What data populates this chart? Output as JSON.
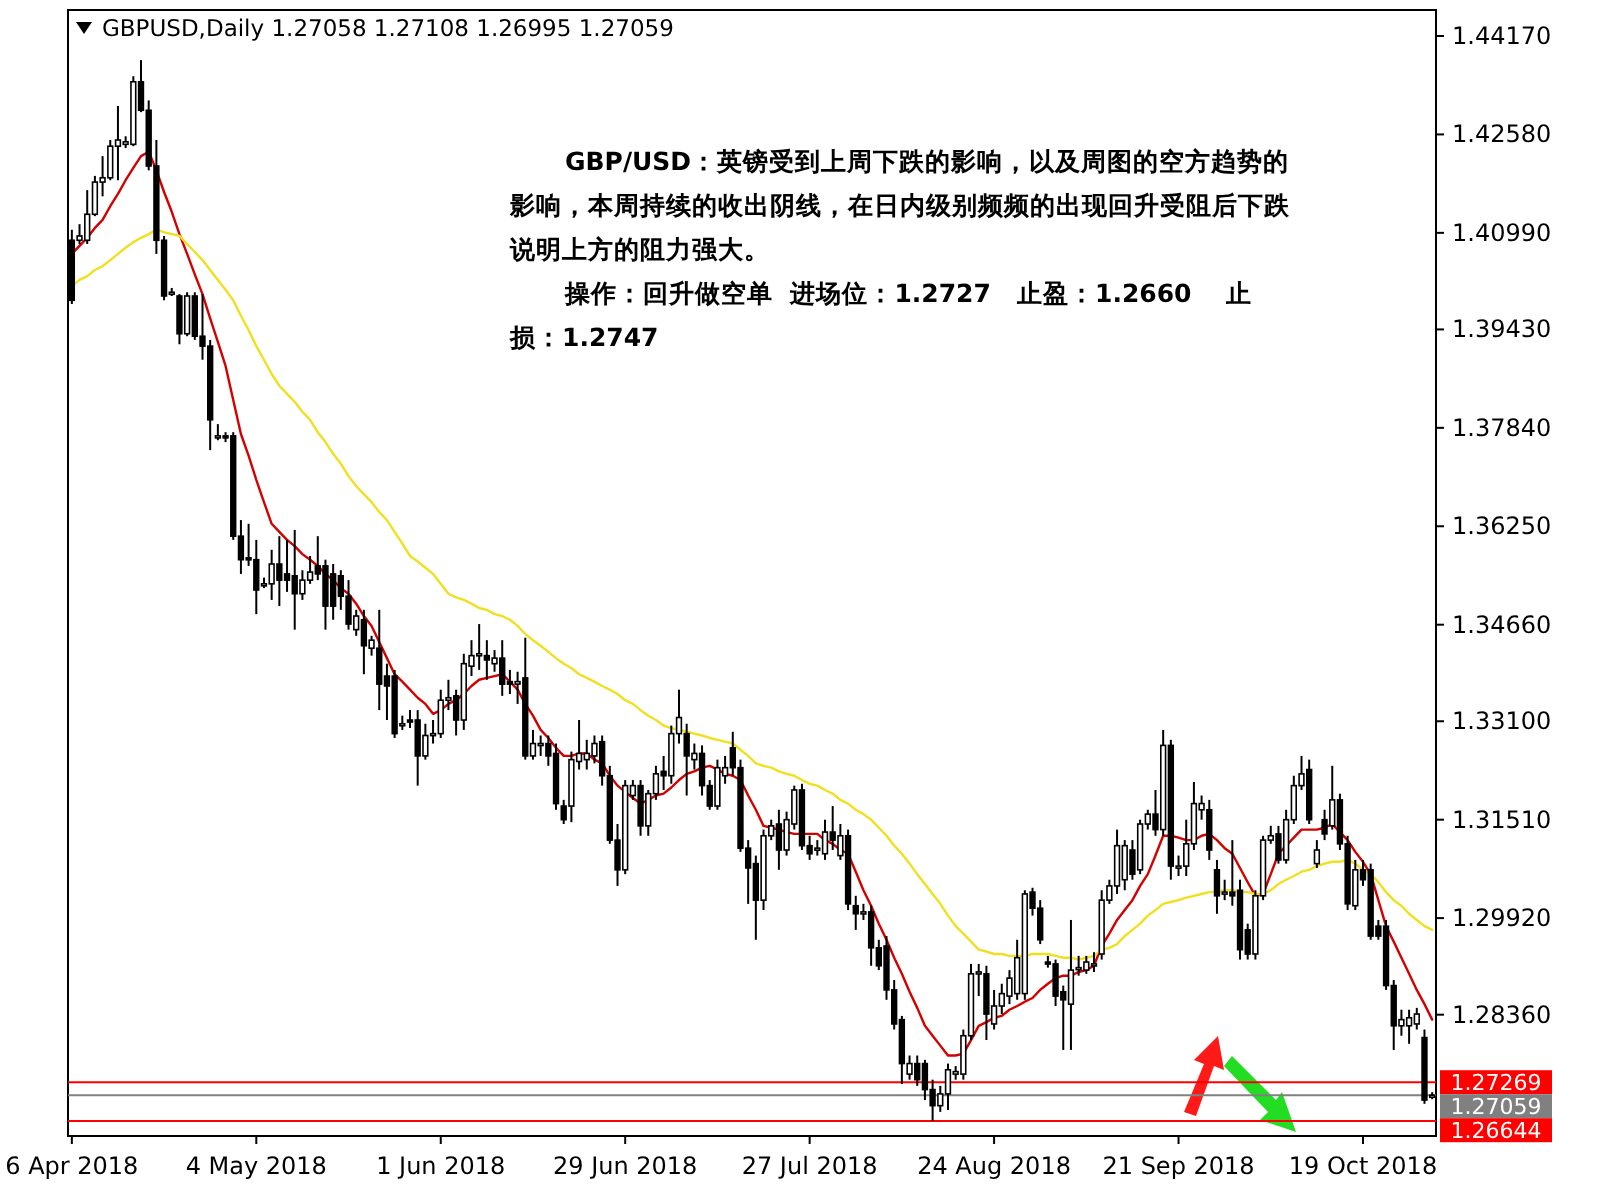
{
  "chart_data": {
    "type": "candlestick",
    "title": "GBPUSD,Daily 1.27058 1.27108 1.26995 1.27059",
    "color": "#000000",
    "categories": [
      "6 Apr 2018",
      null,
      null,
      null,
      null,
      null,
      null,
      null,
      null,
      null,
      null,
      null,
      null,
      null,
      null,
      null,
      null,
      null,
      null,
      null,
      null,
      null,
      null,
      null,
      "4 May 2018",
      null,
      null,
      null,
      null,
      null,
      null,
      null,
      null,
      null,
      null,
      null,
      null,
      null,
      null,
      null,
      null,
      null,
      null,
      null,
      null,
      null,
      null,
      null,
      "1 Jun 2018",
      null,
      null,
      null,
      null,
      null,
      null,
      null,
      null,
      null,
      null,
      null,
      null,
      null,
      null,
      null,
      null,
      null,
      null,
      null,
      null,
      null,
      null,
      null,
      "29 Jun 2018",
      null,
      null,
      null,
      null,
      null,
      null,
      null,
      null,
      null,
      null,
      null,
      null,
      null,
      null,
      null,
      null,
      null,
      null,
      null,
      null,
      null,
      null,
      null,
      "27 Jul 2018",
      null,
      null,
      null,
      null,
      null,
      null,
      null,
      null,
      null,
      null,
      null,
      null,
      null,
      null,
      null,
      null,
      null,
      null,
      null,
      null,
      null,
      null,
      null,
      "24 Aug 2018",
      null,
      null,
      null,
      null,
      null,
      null,
      null,
      null,
      null,
      null,
      null,
      null,
      null,
      null,
      null,
      null,
      null,
      null,
      null,
      null,
      null,
      null,
      null,
      "21 Sep 2018",
      null,
      null,
      null,
      null,
      null,
      null,
      null,
      null,
      null,
      null,
      null,
      null,
      null,
      null,
      null,
      null,
      null,
      null,
      null,
      null,
      null,
      null,
      null,
      "19 Oct 2018",
      null,
      null,
      null,
      null,
      null,
      null,
      null,
      null,
      null
    ],
    "ohlc": [
      [
        1.4087,
        1.4104,
        1.3984,
        1.399
      ],
      [
        1.4087,
        1.4113,
        1.4081,
        1.4094
      ],
      [
        1.4087,
        1.4168,
        1.4081,
        1.4129
      ],
      [
        1.4129,
        1.4191,
        1.4126,
        1.4181
      ],
      [
        1.4181,
        1.4223,
        1.4158,
        1.4188
      ],
      [
        1.4188,
        1.4249,
        1.4184,
        1.4239
      ],
      [
        1.4239,
        1.4304,
        1.4184,
        1.4249
      ],
      [
        1.4242,
        1.4255,
        1.4236,
        1.4246
      ],
      [
        1.4242,
        1.4352,
        1.4239,
        1.4343
      ],
      [
        1.4343,
        1.4378,
        1.4294,
        1.4297
      ],
      [
        1.4297,
        1.4313,
        1.42,
        1.4207
      ],
      [
        1.4207,
        1.4249,
        1.4065,
        1.4087
      ],
      [
        1.4087,
        1.4094,
        1.399,
        1.3997
      ],
      [
        1.4003,
        1.401,
        1.3997,
        1.4003
      ],
      [
        1.3997,
        1.4,
        1.3919,
        1.3936
      ],
      [
        1.3936,
        1.4003,
        1.3932,
        1.3997
      ],
      [
        1.3997,
        1.4003,
        1.3926,
        1.3932
      ],
      [
        1.3932,
        1.4,
        1.3894,
        1.3916
      ],
      [
        1.3916,
        1.3926,
        1.3748,
        1.3797
      ],
      [
        1.3771,
        1.379,
        1.3764,
        1.3771
      ],
      [
        1.3771,
        1.3777,
        1.3761,
        1.3768
      ],
      [
        1.3771,
        1.3777,
        1.3603,
        1.3609
      ],
      [
        1.3609,
        1.3635,
        1.3548,
        1.3571
      ],
      [
        1.3574,
        1.3629,
        1.3561,
        1.3571
      ],
      [
        1.3571,
        1.3603,
        1.3483,
        1.3522
      ],
      [
        1.3532,
        1.3542,
        1.3525,
        1.3532
      ],
      [
        1.3532,
        1.3587,
        1.3506,
        1.3564
      ],
      [
        1.3564,
        1.3609,
        1.3496,
        1.3538
      ],
      [
        1.3548,
        1.3603,
        1.3519,
        1.3538
      ],
      [
        1.3545,
        1.3619,
        1.3458,
        1.3516
      ],
      [
        1.3516,
        1.3554,
        1.3506,
        1.3538
      ],
      [
        1.3538,
        1.3577,
        1.3532,
        1.3551
      ],
      [
        1.3561,
        1.3609,
        1.3538,
        1.3548
      ],
      [
        1.3561,
        1.3571,
        1.3458,
        1.3496
      ],
      [
        1.3548,
        1.3564,
        1.3474,
        1.3496
      ],
      [
        1.3545,
        1.3554,
        1.349,
        1.3512
      ],
      [
        1.3512,
        1.3538,
        1.3458,
        1.3467
      ],
      [
        1.3458,
        1.349,
        1.3448,
        1.348
      ],
      [
        1.3474,
        1.349,
        1.3386,
        1.3432
      ],
      [
        1.3428,
        1.3448,
        1.3416,
        1.3441
      ],
      [
        1.3428,
        1.349,
        1.3328,
        1.337
      ],
      [
        1.3383,
        1.3403,
        1.3312,
        1.3367
      ],
      [
        1.3383,
        1.3393,
        1.3283,
        1.329
      ],
      [
        1.3306,
        1.3319,
        1.3296,
        1.3306
      ],
      [
        1.3312,
        1.3328,
        1.3299,
        1.3309
      ],
      [
        1.3312,
        1.3328,
        1.3206,
        1.3254
      ],
      [
        1.3254,
        1.3306,
        1.3248,
        1.3287
      ],
      [
        1.3287,
        1.3312,
        1.3274,
        1.329
      ],
      [
        1.329,
        1.3361,
        1.3283,
        1.3344
      ],
      [
        1.3344,
        1.3377,
        1.3328,
        1.3348
      ],
      [
        1.3351,
        1.3361,
        1.3287,
        1.3312
      ],
      [
        1.3312,
        1.3419,
        1.3296,
        1.3403
      ],
      [
        1.3399,
        1.3441,
        1.3383,
        1.3416
      ],
      [
        1.3416,
        1.3467,
        1.3393,
        1.3419
      ],
      [
        1.3416,
        1.3441,
        1.3377,
        1.3409
      ],
      [
        1.3403,
        1.3425,
        1.339,
        1.3412
      ],
      [
        1.3412,
        1.3441,
        1.3351,
        1.337
      ],
      [
        1.3374,
        1.3393,
        1.3354,
        1.337
      ],
      [
        1.337,
        1.339,
        1.3338,
        1.3374
      ],
      [
        1.338,
        1.3445,
        1.3248,
        1.3254
      ],
      [
        1.3254,
        1.3296,
        1.3248,
        1.3274
      ],
      [
        1.3271,
        1.3287,
        1.3254,
        1.3274
      ],
      [
        1.3274,
        1.3287,
        1.3238,
        1.3254
      ],
      [
        1.3258,
        1.3274,
        1.3167,
        1.3177
      ],
      [
        1.3173,
        1.3183,
        1.3144,
        1.3151
      ],
      [
        1.3173,
        1.3261,
        1.3147,
        1.3248
      ],
      [
        1.3245,
        1.3312,
        1.3232,
        1.3258
      ],
      [
        1.3248,
        1.328,
        1.3232,
        1.3258
      ],
      [
        1.3254,
        1.3287,
        1.3242,
        1.3274
      ],
      [
        1.3277,
        1.3287,
        1.3206,
        1.3222
      ],
      [
        1.3222,
        1.3238,
        1.3112,
        1.3118
      ],
      [
        1.3118,
        1.3144,
        1.3044,
        1.307
      ],
      [
        1.307,
        1.3215,
        1.3063,
        1.3206
      ],
      [
        1.319,
        1.3215,
        1.3183,
        1.3206
      ],
      [
        1.3206,
        1.3215,
        1.3125,
        1.3141
      ],
      [
        1.3141,
        1.3199,
        1.3125,
        1.3193
      ],
      [
        1.3193,
        1.3238,
        1.3183,
        1.3225
      ],
      [
        1.3229,
        1.3254,
        1.3199,
        1.3222
      ],
      [
        1.3222,
        1.3303,
        1.3209,
        1.329
      ],
      [
        1.329,
        1.3361,
        1.3274,
        1.3316
      ],
      [
        1.329,
        1.3306,
        1.319,
        1.3254
      ],
      [
        1.3248,
        1.3274,
        1.3232,
        1.3258
      ],
      [
        1.3258,
        1.3271,
        1.319,
        1.3206
      ],
      [
        1.3206,
        1.3215,
        1.3167,
        1.3173
      ],
      [
        1.3173,
        1.3248,
        1.3167,
        1.3235
      ],
      [
        1.3222,
        1.3254,
        1.3209,
        1.3235
      ],
      [
        1.3267,
        1.3293,
        1.3222,
        1.3235
      ],
      [
        1.3235,
        1.3248,
        1.3099,
        1.3105
      ],
      [
        1.3105,
        1.3118,
        1.3015,
        1.3073
      ],
      [
        1.308,
        1.3093,
        1.2957,
        1.3021
      ],
      [
        1.3021,
        1.3135,
        1.3005,
        1.3125
      ],
      [
        1.3125,
        1.3151,
        1.3118,
        1.3141
      ],
      [
        1.3144,
        1.3167,
        1.307,
        1.3102
      ],
      [
        1.3102,
        1.3164,
        1.3093,
        1.3151
      ],
      [
        1.3144,
        1.3206,
        1.3135,
        1.3199
      ],
      [
        1.3199,
        1.3209,
        1.3102,
        1.3109
      ],
      [
        1.3109,
        1.3125,
        1.3086,
        1.3096
      ],
      [
        1.3105,
        1.3118,
        1.3093,
        1.3105
      ],
      [
        1.3096,
        1.3151,
        1.3086,
        1.3131
      ],
      [
        1.3131,
        1.3173,
        1.3102,
        1.3118
      ],
      [
        1.3093,
        1.3144,
        1.3086,
        1.3125
      ],
      [
        1.3125,
        1.3135,
        1.3005,
        1.3015
      ],
      [
        1.3012,
        1.3028,
        1.2973,
        1.2999
      ],
      [
        1.3002,
        1.3015,
        1.2989,
        1.3002
      ],
      [
        1.3002,
        1.3012,
        1.2915,
        1.2944
      ],
      [
        1.2944,
        1.2957,
        1.2908,
        1.2915
      ],
      [
        1.2947,
        1.2963,
        1.286,
        1.2876
      ],
      [
        1.2876,
        1.2892,
        1.2812,
        1.2821
      ],
      [
        1.2828,
        1.2834,
        1.2724,
        1.2757
      ],
      [
        1.274,
        1.277,
        1.2731,
        1.2757
      ],
      [
        1.2757,
        1.277,
        1.2721,
        1.2731
      ],
      [
        1.2757,
        1.2763,
        1.2698,
        1.2715
      ],
      [
        1.2715,
        1.2731,
        1.2664,
        1.2689
      ],
      [
        1.2689,
        1.2721,
        1.2679,
        1.2708
      ],
      [
        1.2708,
        1.2757,
        1.2682,
        1.2747
      ],
      [
        1.274,
        1.2753,
        1.2731,
        1.2744
      ],
      [
        1.274,
        1.2812,
        1.2731,
        1.2802
      ],
      [
        1.2802,
        1.2918,
        1.2795,
        1.2902
      ],
      [
        1.2902,
        1.2918,
        1.2866,
        1.2905
      ],
      [
        1.2902,
        1.2915,
        1.2795,
        1.2837
      ],
      [
        1.2821,
        1.2876,
        1.2812,
        1.285
      ],
      [
        1.285,
        1.2886,
        1.2837,
        1.287
      ],
      [
        1.2866,
        1.2908,
        1.2853,
        1.2895
      ],
      [
        1.287,
        1.2957,
        1.286,
        1.2928
      ],
      [
        1.287,
        1.3037,
        1.286,
        1.3031
      ],
      [
        1.3034,
        1.3041,
        1.2996,
        1.3008
      ],
      [
        1.3008,
        1.3021,
        1.295,
        1.2957
      ],
      [
        1.2921,
        1.2931,
        1.2912,
        1.2918
      ],
      [
        1.2918,
        1.2925,
        1.285,
        1.2866
      ],
      [
        1.2873,
        1.2883,
        1.2779,
        1.286
      ],
      [
        1.2853,
        1.2989,
        1.2779,
        1.2908
      ],
      [
        1.2912,
        1.2931,
        1.2899,
        1.2912
      ],
      [
        1.2908,
        1.2931,
        1.2902,
        1.2921
      ],
      [
        1.2918,
        1.2937,
        1.2905,
        1.2918
      ],
      [
        1.2934,
        1.3037,
        1.2925,
        1.3021
      ],
      [
        1.3021,
        1.3054,
        1.3015,
        1.3044
      ],
      [
        1.3044,
        1.3135,
        1.3031,
        1.3109
      ],
      [
        1.3054,
        1.3118,
        1.3037,
        1.3109
      ],
      [
        1.3102,
        1.3118,
        1.3054,
        1.3063
      ],
      [
        1.307,
        1.3151,
        1.3063,
        1.3144
      ],
      [
        1.3144,
        1.3167,
        1.3135,
        1.316
      ],
      [
        1.316,
        1.3199,
        1.3125,
        1.3135
      ],
      [
        1.3135,
        1.3296,
        1.3125,
        1.3271
      ],
      [
        1.3271,
        1.328,
        1.3054,
        1.3076
      ],
      [
        1.3076,
        1.3093,
        1.306,
        1.3076
      ],
      [
        1.3076,
        1.3151,
        1.306,
        1.3112
      ],
      [
        1.3112,
        1.3212,
        1.3102,
        1.3177
      ],
      [
        1.3167,
        1.319,
        1.3151,
        1.3177
      ],
      [
        1.3167,
        1.3183,
        1.3086,
        1.3102
      ],
      [
        1.307,
        1.3086,
        1.2999,
        1.3028
      ],
      [
        1.3034,
        1.3054,
        1.3021,
        1.3034
      ],
      [
        1.3034,
        1.3118,
        1.3012,
        1.3028
      ],
      [
        1.3037,
        1.3054,
        1.2925,
        1.2941
      ],
      [
        1.2973,
        1.2983,
        1.2925,
        1.2934
      ],
      [
        1.2934,
        1.3037,
        1.2925,
        1.3028
      ],
      [
        1.3028,
        1.3125,
        1.3021,
        1.3118
      ],
      [
        1.3118,
        1.3141,
        1.3112,
        1.3125
      ],
      [
        1.3128,
        1.3141,
        1.308,
        1.3086
      ],
      [
        1.3086,
        1.3167,
        1.308,
        1.3151
      ],
      [
        1.3151,
        1.3222,
        1.3144,
        1.3206
      ],
      [
        1.3206,
        1.3254,
        1.3199,
        1.3225
      ],
      [
        1.3232,
        1.3248,
        1.3144,
        1.3151
      ],
      [
        1.308,
        1.3118,
        1.3073,
        1.3102
      ],
      [
        1.3151,
        1.3167,
        1.3118,
        1.3128
      ],
      [
        1.3141,
        1.3238,
        1.3135,
        1.3183
      ],
      [
        1.3183,
        1.3193,
        1.3102,
        1.3112
      ],
      [
        1.3112,
        1.3125,
        1.3005,
        1.3015
      ],
      [
        1.3012,
        1.3086,
        1.3005,
        1.307
      ],
      [
        1.307,
        1.3086,
        1.3044,
        1.3054
      ],
      [
        1.307,
        1.308,
        1.2957,
        1.2963
      ],
      [
        1.2979,
        1.2989,
        1.2957,
        1.2963
      ],
      [
        1.2979,
        1.2989,
        1.2876,
        1.2883
      ],
      [
        1.2883,
        1.2892,
        1.2779,
        1.2818
      ],
      [
        1.2818,
        1.2844,
        1.2802,
        1.2828
      ],
      [
        1.2818,
        1.2844,
        1.2789,
        1.2831
      ],
      [
        1.2821,
        1.2847,
        1.2812,
        1.2837
      ],
      [
        1.2799,
        1.2812,
        1.2692,
        1.2698
      ],
      [
        1.27058,
        1.27108,
        1.26995,
        1.27059
      ]
    ],
    "series": [
      {
        "type": "line",
        "color": "#d40000",
        "values": [
          1.4065,
          1.4078,
          1.4091,
          1.4107,
          1.412,
          1.4142,
          1.4162,
          1.4184,
          1.4204,
          1.4223,
          1.423,
          1.42,
          1.4165,
          1.4133,
          1.4097,
          1.4065,
          1.4032,
          1.4,
          1.3961,
          1.3923,
          1.3884,
          1.3829,
          1.3774,
          1.3739,
          1.37,
          1.3664,
          1.3629,
          1.3616,
          1.3603,
          1.3593,
          1.358,
          1.3571,
          1.3561,
          1.3548,
          1.3538,
          1.3525,
          1.3516,
          1.35,
          1.348,
          1.3464,
          1.3438,
          1.3412,
          1.3386,
          1.3374,
          1.3361,
          1.3348,
          1.3338,
          1.3322,
          1.3328,
          1.3338,
          1.3344,
          1.3354,
          1.3367,
          1.3377,
          1.338,
          1.3383,
          1.3386,
          1.3374,
          1.3361,
          1.3338,
          1.3319,
          1.3296,
          1.3283,
          1.3267,
          1.3254,
          1.3254,
          1.3258,
          1.3258,
          1.3248,
          1.3242,
          1.3222,
          1.3206,
          1.3196,
          1.3186,
          1.3177,
          1.3183,
          1.319,
          1.3193,
          1.3203,
          1.3215,
          1.3225,
          1.3229,
          1.3235,
          1.3238,
          1.3232,
          1.3225,
          1.3222,
          1.3215,
          1.319,
          1.3167,
          1.3141,
          1.3138,
          1.3135,
          1.3131,
          1.3128,
          1.3128,
          1.3128,
          1.3128,
          1.3118,
          1.3112,
          1.3102,
          1.3096,
          1.3067,
          1.3037,
          1.3012,
          1.2983,
          1.2957,
          1.2928,
          1.2902,
          1.2873,
          1.2847,
          1.2818,
          1.2802,
          1.2786,
          1.277,
          1.277,
          1.2773,
          1.2795,
          1.2818,
          1.2824,
          1.2831,
          1.2834,
          1.2844,
          1.285,
          1.2857,
          1.2863,
          1.2876,
          1.2886,
          1.2895,
          1.2899,
          1.2899,
          1.2905,
          1.2908,
          1.2915,
          1.2947,
          1.2967,
          1.2989,
          1.3005,
          1.3021,
          1.3044,
          1.3063,
          1.3093,
          1.3125,
          1.3125,
          1.3122,
          1.3118,
          1.3118,
          1.3125,
          1.3128,
          1.3118,
          1.3105,
          1.3096,
          1.3073,
          1.305,
          1.3028,
          1.3031,
          1.3063,
          1.3096,
          1.3109,
          1.3122,
          1.3135,
          1.3135,
          1.3135,
          1.3138,
          1.3144,
          1.3131,
          1.3118,
          1.3099,
          1.3083,
          1.3063,
          1.3021,
          1.2979,
          1.2954,
          1.2928,
          1.2902,
          1.2876,
          1.2853,
          1.2828
        ]
      },
      {
        "type": "line",
        "color": "#f0e020",
        "values": [
          1.4013,
          1.4023,
          1.4029,
          1.4039,
          1.4045,
          1.4055,
          1.4065,
          1.4075,
          1.4084,
          1.4091,
          1.4097,
          1.4104,
          1.41,
          1.4097,
          1.4094,
          1.4081,
          1.4068,
          1.4055,
          1.4039,
          1.4023,
          1.4007,
          1.399,
          1.3965,
          1.3942,
          1.3916,
          1.3894,
          1.3871,
          1.3852,
          1.3839,
          1.3826,
          1.381,
          1.3797,
          1.3777,
          1.3761,
          1.3742,
          1.3726,
          1.3706,
          1.369,
          1.3677,
          1.3664,
          1.3648,
          1.3635,
          1.3616,
          1.3597,
          1.3577,
          1.3568,
          1.3558,
          1.3548,
          1.3532,
          1.3516,
          1.351,
          1.3506,
          1.35,
          1.3493,
          1.349,
          1.3483,
          1.348,
          1.3474,
          1.3464,
          1.3451,
          1.3441,
          1.3432,
          1.3422,
          1.3412,
          1.3403,
          1.3396,
          1.3386,
          1.338,
          1.3374,
          1.3367,
          1.3361,
          1.3354,
          1.3344,
          1.3338,
          1.3328,
          1.3319,
          1.3312,
          1.3303,
          1.3299,
          1.3296,
          1.3293,
          1.329,
          1.3287,
          1.3283,
          1.328,
          1.3277,
          1.3274,
          1.3264,
          1.3254,
          1.3242,
          1.3238,
          1.3235,
          1.3229,
          1.3225,
          1.3222,
          1.3215,
          1.3209,
          1.3206,
          1.3199,
          1.3193,
          1.3183,
          1.3177,
          1.3167,
          1.316,
          1.3151,
          1.3138,
          1.3125,
          1.3109,
          1.3096,
          1.308,
          1.3063,
          1.3047,
          1.3031,
          1.3015,
          1.2996,
          1.2979,
          1.2967,
          1.2954,
          1.2941,
          1.2938,
          1.2934,
          1.2934,
          1.2931,
          1.2931,
          1.2931,
          1.2934,
          1.2934,
          1.2934,
          1.2931,
          1.2928,
          1.2928,
          1.2925,
          1.2928,
          1.2931,
          1.2941,
          1.2944,
          1.295,
          1.2963,
          1.2973,
          1.2983,
          1.2996,
          1.3005,
          1.3015,
          1.3018,
          1.3021,
          1.3025,
          1.3028,
          1.3031,
          1.3034,
          1.3034,
          1.3037,
          1.3037,
          1.3034,
          1.3034,
          1.3031,
          1.3031,
          1.3037,
          1.3047,
          1.3054,
          1.306,
          1.3067,
          1.307,
          1.3076,
          1.308,
          1.3083,
          1.3083,
          1.3086,
          1.308,
          1.307,
          1.3063,
          1.305,
          1.3034,
          1.3021,
          1.3012,
          1.2999,
          1.2989,
          1.2979,
          1.2973
        ]
      }
    ],
    "ylim": [
      1.264,
      1.4459
    ],
    "yticks": [
      {
        "value": 1.4417,
        "label": "1.44170"
      },
      {
        "value": 1.4258,
        "label": "1.42580"
      },
      {
        "value": 1.4099,
        "label": "1.40990"
      },
      {
        "value": 1.3943,
        "label": "1.39430"
      },
      {
        "value": 1.3784,
        "label": "1.37840"
      },
      {
        "value": 1.3625,
        "label": "1.36250"
      },
      {
        "value": 1.3466,
        "label": "1.34660"
      },
      {
        "value": 1.331,
        "label": "1.33100"
      },
      {
        "value": 1.3151,
        "label": "1.31510"
      },
      {
        "value": 1.2992,
        "label": "1.29920"
      },
      {
        "value": 1.2836,
        "label": "1.28360"
      }
    ],
    "ref_lines": [
      {
        "axis": "y",
        "value": 1.27269,
        "label": "1.27269",
        "color": "#ff0000"
      },
      {
        "axis": "y",
        "value": 1.27059,
        "label": "1.27059",
        "color": "#808080"
      },
      {
        "axis": "y",
        "value": 1.26644,
        "label": "1.26644",
        "color": "#ff0000"
      }
    ],
    "annotations": [
      "GBP/USD：英镑受到上周下跌的影响，以及周图的空方趋势的影响，本周持续的收出阴线，在日内级别频频的出现回升受阻后下跌说明上方的阻力强大。",
      "操作：回升做空单  进场位：1.2727   止盈：1.2660    止损：1.2747"
    ]
  }
}
